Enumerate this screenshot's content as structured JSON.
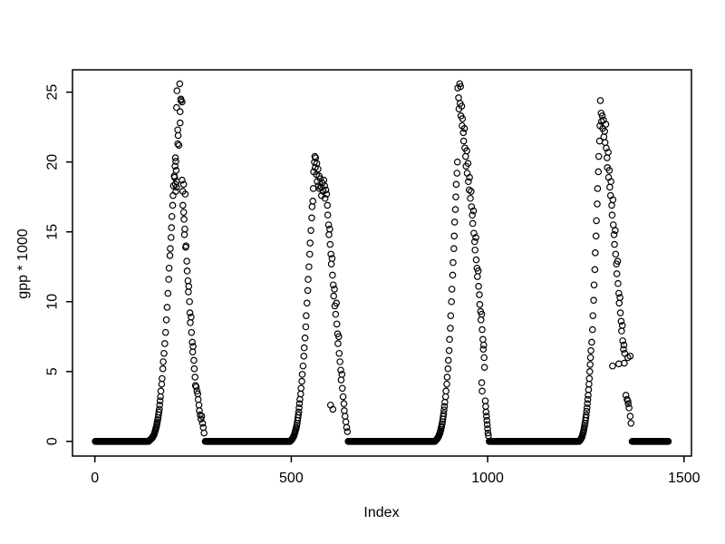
{
  "figure": {
    "background": "#ffffff"
  },
  "chart_data": {
    "type": "scatter",
    "title": "",
    "xlabel": "Index",
    "ylabel": "gpp * 1000",
    "x_ticks": [
      0,
      500,
      1000,
      1500
    ],
    "y_ticks": [
      0,
      5,
      10,
      15,
      20,
      25
    ],
    "xlim": [
      -57,
      1519
    ],
    "ylim": [
      -1.05,
      26.6
    ],
    "grid": "off",
    "legend": "none",
    "axis_color": "#000000",
    "marker": {
      "shape": "open-circle",
      "color": "#000000",
      "radius": 3.2,
      "stroke_width": 1.2
    },
    "n_points_total": 1460,
    "zero_runs": [
      [
        1,
        137
      ],
      [
        281,
        497
      ],
      [
        645,
        866
      ],
      [
        1004,
        1233
      ],
      [
        1368,
        1460
      ]
    ],
    "points": [
      [
        138,
        0.05
      ],
      [
        139,
        0.08
      ],
      [
        140,
        0.1
      ],
      [
        141,
        0.12
      ],
      [
        142,
        0.15
      ],
      [
        143,
        0.18
      ],
      [
        144,
        0.2
      ],
      [
        145,
        0.22
      ],
      [
        146,
        0.25
      ],
      [
        147,
        0.3
      ],
      [
        148,
        0.35
      ],
      [
        149,
        0.4
      ],
      [
        150,
        0.45
      ],
      [
        151,
        0.5
      ],
      [
        152,
        0.6
      ],
      [
        153,
        0.7
      ],
      [
        154,
        0.8
      ],
      [
        155,
        0.9
      ],
      [
        156,
        1.0
      ],
      [
        157,
        1.1
      ],
      [
        158,
        1.25
      ],
      [
        159,
        1.4
      ],
      [
        160,
        1.55
      ],
      [
        161,
        1.7
      ],
      [
        162,
        1.9
      ],
      [
        163,
        2.1
      ],
      [
        164,
        2.3
      ],
      [
        165,
        2.6
      ],
      [
        166,
        2.9
      ],
      [
        167,
        3.2
      ],
      [
        168,
        3.6
      ],
      [
        170,
        4.1
      ],
      [
        171,
        4.5
      ],
      [
        173,
        5.2
      ],
      [
        174,
        5.7
      ],
      [
        176,
        6.3
      ],
      [
        178,
        7.0
      ],
      [
        180,
        7.8
      ],
      [
        182,
        8.7
      ],
      [
        184,
        9.6
      ],
      [
        186,
        10.6
      ],
      [
        188,
        11.6
      ],
      [
        189,
        12.4
      ],
      [
        191,
        13.3
      ],
      [
        192,
        13.8
      ],
      [
        194,
        14.6
      ],
      [
        195,
        15.3
      ],
      [
        196,
        16.1
      ],
      [
        198,
        16.9
      ],
      [
        199,
        17.6
      ],
      [
        200,
        18.3
      ],
      [
        202,
        19.0
      ],
      [
        203,
        18.9
      ],
      [
        204,
        19.7
      ],
      [
        205,
        20.3
      ],
      [
        205,
        18.4
      ],
      [
        206,
        20.05
      ],
      [
        206,
        17.9
      ],
      [
        207,
        19.4
      ],
      [
        208,
        18.6
      ],
      [
        208,
        18.2
      ],
      [
        208,
        23.9
      ],
      [
        209,
        25.1
      ],
      [
        211,
        21.3
      ],
      [
        211,
        22.3
      ],
      [
        212,
        21.9
      ],
      [
        214,
        21.2
      ],
      [
        216,
        25.6
      ],
      [
        217,
        23.6
      ],
      [
        217,
        22.8
      ],
      [
        219,
        24.4
      ],
      [
        219,
        24.5
      ],
      [
        222,
        24.3
      ],
      [
        222,
        18.7
      ],
      [
        224,
        17.9
      ],
      [
        224,
        16.9
      ],
      [
        226,
        18.4
      ],
      [
        226,
        16.4
      ],
      [
        227,
        15.9
      ],
      [
        228,
        14.8
      ],
      [
        229,
        15.2
      ],
      [
        230,
        17.7
      ],
      [
        231,
        13.9
      ],
      [
        232,
        14.0
      ],
      [
        234,
        12.9
      ],
      [
        235,
        12.2
      ],
      [
        237,
        11.5
      ],
      [
        238,
        10.7
      ],
      [
        239,
        11.1
      ],
      [
        241,
        10.0
      ],
      [
        242,
        9.2
      ],
      [
        243,
        8.5
      ],
      [
        245,
        8.9
      ],
      [
        246,
        7.8
      ],
      [
        248,
        7.1
      ],
      [
        249,
        6.4
      ],
      [
        250,
        6.8
      ],
      [
        252,
        5.8
      ],
      [
        253,
        5.2
      ],
      [
        255,
        4.6
      ],
      [
        256,
        4.0
      ],
      [
        258,
        3.9
      ],
      [
        260,
        3.6
      ],
      [
        262,
        3.4
      ],
      [
        263,
        3.0
      ],
      [
        265,
        2.6
      ],
      [
        266,
        2.2
      ],
      [
        268,
        1.9
      ],
      [
        270,
        1.6
      ],
      [
        272,
        1.8
      ],
      [
        274,
        1.3
      ],
      [
        276,
        1.0
      ],
      [
        278,
        0.6
      ],
      [
        498,
        0.05
      ],
      [
        499,
        0.08
      ],
      [
        500,
        0.1
      ],
      [
        501,
        0.12
      ],
      [
        502,
        0.15
      ],
      [
        503,
        0.2
      ],
      [
        504,
        0.25
      ],
      [
        505,
        0.3
      ],
      [
        506,
        0.35
      ],
      [
        507,
        0.4
      ],
      [
        508,
        0.5
      ],
      [
        509,
        0.6
      ],
      [
        510,
        0.7
      ],
      [
        511,
        0.8
      ],
      [
        512,
        0.9
      ],
      [
        513,
        1.0
      ],
      [
        514,
        1.15
      ],
      [
        515,
        1.3
      ],
      [
        516,
        1.5
      ],
      [
        517,
        1.7
      ],
      [
        518,
        1.9
      ],
      [
        519,
        2.1
      ],
      [
        520,
        2.4
      ],
      [
        521,
        2.7
      ],
      [
        522,
        3.0
      ],
      [
        524,
        3.4
      ],
      [
        525,
        3.8
      ],
      [
        527,
        4.3
      ],
      [
        528,
        4.8
      ],
      [
        530,
        5.4
      ],
      [
        532,
        6.1
      ],
      [
        533,
        6.7
      ],
      [
        535,
        7.4
      ],
      [
        537,
        8.2
      ],
      [
        538,
        9.0
      ],
      [
        540,
        9.9
      ],
      [
        542,
        10.8
      ],
      [
        543,
        11.6
      ],
      [
        545,
        12.5
      ],
      [
        547,
        13.4
      ],
      [
        548,
        14.2
      ],
      [
        550,
        15.1
      ],
      [
        552,
        16.0
      ],
      [
        553,
        16.8
      ],
      [
        555,
        17.2
      ],
      [
        556,
        18.1
      ],
      [
        557,
        19.3
      ],
      [
        559,
        20.0
      ],
      [
        560,
        20.4
      ],
      [
        561,
        19.6
      ],
      [
        562,
        20.3
      ],
      [
        564,
        19.1
      ],
      [
        565,
        19.9
      ],
      [
        566,
        18.6
      ],
      [
        568,
        19.5
      ],
      [
        569,
        18.3
      ],
      [
        571,
        19.0
      ],
      [
        572,
        18.1
      ],
      [
        574,
        18.8
      ],
      [
        576,
        18.2
      ],
      [
        577,
        17.6
      ],
      [
        579,
        18.5
      ],
      [
        581,
        17.9
      ],
      [
        583,
        18.7
      ],
      [
        585,
        18.3
      ],
      [
        586,
        17.4
      ],
      [
        588,
        18.0
      ],
      [
        590,
        17.7
      ],
      [
        592,
        16.9
      ],
      [
        593,
        16.2
      ],
      [
        595,
        15.5
      ],
      [
        596,
        14.8
      ],
      [
        598,
        15.2
      ],
      [
        599,
        14.1
      ],
      [
        600,
        2.6
      ],
      [
        601,
        13.4
      ],
      [
        602,
        12.7
      ],
      [
        604,
        13.1
      ],
      [
        605,
        11.9
      ],
      [
        606,
        2.3
      ],
      [
        607,
        11.2
      ],
      [
        608,
        10.4
      ],
      [
        610,
        10.9
      ],
      [
        611,
        9.7
      ],
      [
        613,
        9.1
      ],
      [
        615,
        9.9
      ],
      [
        616,
        8.4
      ],
      [
        618,
        7.7
      ],
      [
        619,
        7.0
      ],
      [
        621,
        7.5
      ],
      [
        622,
        6.3
      ],
      [
        624,
        5.7
      ],
      [
        626,
        5.1
      ],
      [
        627,
        4.4
      ],
      [
        629,
        4.8
      ],
      [
        630,
        3.8
      ],
      [
        632,
        3.2
      ],
      [
        634,
        2.7
      ],
      [
        635,
        2.2
      ],
      [
        637,
        1.8
      ],
      [
        639,
        1.4
      ],
      [
        641,
        1.0
      ],
      [
        643,
        0.7
      ],
      [
        867,
        0.05
      ],
      [
        868,
        0.08
      ],
      [
        869,
        0.1
      ],
      [
        870,
        0.13
      ],
      [
        871,
        0.16
      ],
      [
        872,
        0.2
      ],
      [
        873,
        0.25
      ],
      [
        874,
        0.3
      ],
      [
        875,
        0.35
      ],
      [
        876,
        0.4
      ],
      [
        877,
        0.5
      ],
      [
        878,
        0.55
      ],
      [
        879,
        0.65
      ],
      [
        880,
        0.75
      ],
      [
        881,
        0.85
      ],
      [
        882,
        1.0
      ],
      [
        883,
        1.1
      ],
      [
        884,
        1.25
      ],
      [
        885,
        1.4
      ],
      [
        886,
        1.6
      ],
      [
        887,
        1.8
      ],
      [
        888,
        2.0
      ],
      [
        889,
        2.25
      ],
      [
        890,
        2.5
      ],
      [
        891,
        2.8
      ],
      [
        893,
        3.2
      ],
      [
        894,
        3.6
      ],
      [
        896,
        4.1
      ],
      [
        897,
        4.6
      ],
      [
        899,
        5.2
      ],
      [
        900,
        5.8
      ],
      [
        902,
        6.5
      ],
      [
        903,
        7.3
      ],
      [
        905,
        8.1
      ],
      [
        906,
        9.0
      ],
      [
        908,
        10.0
      ],
      [
        909,
        10.9
      ],
      [
        911,
        11.9
      ],
      [
        912,
        12.8
      ],
      [
        914,
        13.8
      ],
      [
        915,
        14.7
      ],
      [
        916,
        15.7
      ],
      [
        918,
        16.6
      ],
      [
        919,
        17.5
      ],
      [
        920,
        18.4
      ],
      [
        922,
        19.2
      ],
      [
        923,
        20.0
      ],
      [
        924,
        25.3
      ],
      [
        926,
        24.6
      ],
      [
        927,
        23.8
      ],
      [
        929,
        25.6
      ],
      [
        930,
        24.2
      ],
      [
        931,
        25.4
      ],
      [
        932,
        23.3
      ],
      [
        934,
        24.0
      ],
      [
        935,
        22.6
      ],
      [
        936,
        23.1
      ],
      [
        938,
        22.1
      ],
      [
        939,
        21.5
      ],
      [
        941,
        22.4
      ],
      [
        942,
        21.0
      ],
      [
        944,
        20.4
      ],
      [
        945,
        19.7
      ],
      [
        947,
        20.8
      ],
      [
        948,
        19.2
      ],
      [
        950,
        19.9
      ],
      [
        951,
        18.6
      ],
      [
        953,
        18.0
      ],
      [
        954,
        18.9
      ],
      [
        956,
        17.4
      ],
      [
        958,
        17.9
      ],
      [
        959,
        16.8
      ],
      [
        961,
        16.2
      ],
      [
        962,
        15.6
      ],
      [
        964,
        16.5
      ],
      [
        965,
        14.9
      ],
      [
        967,
        14.3
      ],
      [
        968,
        13.7
      ],
      [
        970,
        14.6
      ],
      [
        971,
        13.0
      ],
      [
        973,
        12.4
      ],
      [
        974,
        11.8
      ],
      [
        976,
        12.2
      ],
      [
        977,
        11.1
      ],
      [
        979,
        10.5
      ],
      [
        980,
        9.8
      ],
      [
        982,
        9.3
      ],
      [
        983,
        8.7
      ],
      [
        985,
        9.1
      ],
      [
        985,
        4.2
      ],
      [
        986,
        8.0
      ],
      [
        986,
        3.6
      ],
      [
        988,
        7.3
      ],
      [
        989,
        6.6
      ],
      [
        990,
        6.9
      ],
      [
        991,
        6.0
      ],
      [
        992,
        5.3
      ],
      [
        994,
        2.9
      ],
      [
        995,
        2.5
      ],
      [
        996,
        2.1
      ],
      [
        997,
        1.8
      ],
      [
        998,
        1.5
      ],
      [
        999,
        1.2
      ],
      [
        1000,
        0.9
      ],
      [
        1001,
        0.6
      ],
      [
        1002,
        0.4
      ],
      [
        1234,
        0.05
      ],
      [
        1235,
        0.08
      ],
      [
        1236,
        0.1
      ],
      [
        1237,
        0.15
      ],
      [
        1238,
        0.2
      ],
      [
        1239,
        0.25
      ],
      [
        1240,
        0.3
      ],
      [
        1241,
        0.4
      ],
      [
        1242,
        0.5
      ],
      [
        1243,
        0.6
      ],
      [
        1244,
        0.7
      ],
      [
        1245,
        0.85
      ],
      [
        1246,
        1.0
      ],
      [
        1247,
        1.15
      ],
      [
        1248,
        1.3
      ],
      [
        1249,
        1.5
      ],
      [
        1250,
        1.7
      ],
      [
        1251,
        1.9
      ],
      [
        1252,
        2.15
      ],
      [
        1253,
        2.4
      ],
      [
        1254,
        2.7
      ],
      [
        1255,
        3.0
      ],
      [
        1256,
        3.3
      ],
      [
        1257,
        3.7
      ],
      [
        1258,
        4.1
      ],
      [
        1259,
        4.5
      ],
      [
        1260,
        5.0
      ],
      [
        1261,
        5.5
      ],
      [
        1262,
        6.0
      ],
      [
        1263,
        6.5
      ],
      [
        1265,
        7.1
      ],
      [
        1267,
        8.0
      ],
      [
        1268,
        9.0
      ],
      [
        1270,
        10.1
      ],
      [
        1271,
        11.2
      ],
      [
        1273,
        12.3
      ],
      [
        1274,
        13.5
      ],
      [
        1276,
        14.7
      ],
      [
        1277,
        15.8
      ],
      [
        1279,
        17.0
      ],
      [
        1280,
        18.1
      ],
      [
        1282,
        19.3
      ],
      [
        1283,
        20.4
      ],
      [
        1285,
        21.5
      ],
      [
        1286,
        22.6
      ],
      [
        1287,
        24.4
      ],
      [
        1289,
        23.5
      ],
      [
        1290,
        22.9
      ],
      [
        1292,
        23.3
      ],
      [
        1293,
        22.4
      ],
      [
        1295,
        23.0
      ],
      [
        1296,
        21.8
      ],
      [
        1298,
        22.2
      ],
      [
        1299,
        21.4
      ],
      [
        1301,
        22.7
      ],
      [
        1302,
        21.0
      ],
      [
        1304,
        20.3
      ],
      [
        1305,
        19.6
      ],
      [
        1307,
        20.7
      ],
      [
        1308,
        18.9
      ],
      [
        1310,
        19.4
      ],
      [
        1311,
        18.2
      ],
      [
        1313,
        17.6
      ],
      [
        1314,
        18.6
      ],
      [
        1316,
        16.9
      ],
      [
        1317,
        16.2
      ],
      [
        1319,
        17.3
      ],
      [
        1320,
        15.5
      ],
      [
        1322,
        14.8
      ],
      [
        1323,
        14.1
      ],
      [
        1325,
        15.1
      ],
      [
        1326,
        13.4
      ],
      [
        1328,
        12.7
      ],
      [
        1329,
        12.0
      ],
      [
        1331,
        12.9
      ],
      [
        1332,
        11.3
      ],
      [
        1334,
        10.6
      ],
      [
        1335,
        9.9
      ],
      [
        1337,
        10.3
      ],
      [
        1338,
        9.2
      ],
      [
        1340,
        8.6
      ],
      [
        1341,
        7.9
      ],
      [
        1343,
        8.3
      ],
      [
        1344,
        7.2
      ],
      [
        1346,
        6.6
      ],
      [
        1347,
        6.9
      ],
      [
        1349,
        6.3
      ],
      [
        1318,
        5.4
      ],
      [
        1334,
        5.55
      ],
      [
        1348,
        5.6
      ],
      [
        1357,
        6.0
      ],
      [
        1363,
        6.1
      ],
      [
        1352,
        3.3
      ],
      [
        1355,
        3.0
      ],
      [
        1357,
        2.9
      ],
      [
        1358,
        2.7
      ],
      [
        1360,
        2.4
      ],
      [
        1363,
        1.8
      ],
      [
        1365,
        1.3
      ]
    ]
  }
}
